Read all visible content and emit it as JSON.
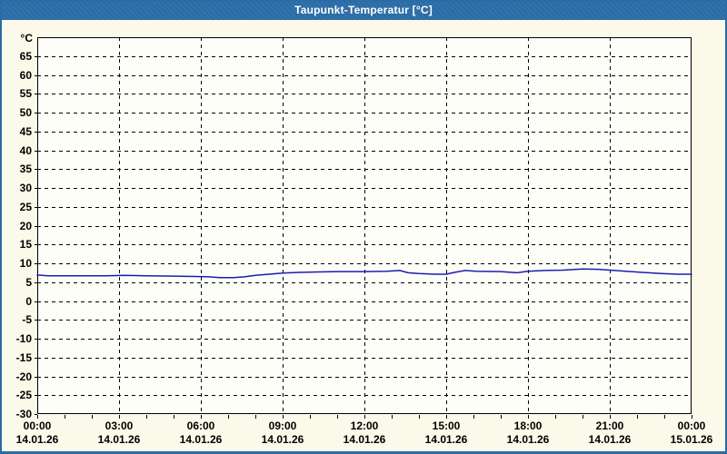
{
  "window": {
    "title": "Taupunkt-Temperatur [°C]"
  },
  "colors": {
    "titlebar": "#2b6ca6",
    "border": "#2b6ca6",
    "window_bg": "#faf9ea",
    "plot_bg": "#fefef9",
    "grid": "#000000",
    "axis": "#000000",
    "label_text": "#000000",
    "title_text": "#ffffff",
    "line": "#1c1cb4"
  },
  "chart_data": {
    "type": "line",
    "title": "Taupunkt-Temperatur [°C]",
    "ylabel": "°C",
    "xlabel": "",
    "ylim": [
      -30,
      70
    ],
    "y_ticks": [
      65,
      60,
      55,
      50,
      45,
      40,
      35,
      30,
      25,
      20,
      15,
      10,
      5,
      0,
      -5,
      -10,
      -15,
      -20,
      -25,
      -30
    ],
    "grid": "dashed",
    "legend": "none",
    "x_axis": {
      "unit": "hours",
      "range_hours": [
        0,
        24
      ],
      "major_step_hours": 3,
      "minor_step_hours": 1,
      "ticks": [
        {
          "hour": 0,
          "time": "00:00",
          "date": "14.01.26"
        },
        {
          "hour": 3,
          "time": "03:00",
          "date": "14.01.26"
        },
        {
          "hour": 6,
          "time": "06:00",
          "date": "14.01.26"
        },
        {
          "hour": 9,
          "time": "09:00",
          "date": "14.01.26"
        },
        {
          "hour": 12,
          "time": "12:00",
          "date": "14.01.26"
        },
        {
          "hour": 15,
          "time": "15:00",
          "date": "14.01.26"
        },
        {
          "hour": 18,
          "time": "18:00",
          "date": "14.01.26"
        },
        {
          "hour": 21,
          "time": "21:00",
          "date": "14.01.26"
        },
        {
          "hour": 24,
          "time": "00:00",
          "date": "15.01.26"
        }
      ]
    },
    "series": [
      {
        "name": "Taupunkt-Temperatur",
        "color": "#1c1cb4",
        "points_hour_degC": [
          [
            0,
            6.9
          ],
          [
            0.4,
            6.7
          ],
          [
            1.5,
            6.7
          ],
          [
            2.5,
            6.7
          ],
          [
            3.2,
            6.8
          ],
          [
            4,
            6.7
          ],
          [
            5,
            6.6
          ],
          [
            5.8,
            6.5
          ],
          [
            6.3,
            6.4
          ],
          [
            6.7,
            6.2
          ],
          [
            7.2,
            6.2
          ],
          [
            7.6,
            6.4
          ],
          [
            8,
            6.8
          ],
          [
            8.5,
            7.1
          ],
          [
            9,
            7.4
          ],
          [
            9.6,
            7.6
          ],
          [
            10.3,
            7.7
          ],
          [
            11,
            7.8
          ],
          [
            12,
            7.8
          ],
          [
            12.8,
            7.9
          ],
          [
            13.3,
            8.1
          ],
          [
            13.6,
            7.5
          ],
          [
            14,
            7.3
          ],
          [
            14.6,
            7.1
          ],
          [
            15,
            7.1
          ],
          [
            15.3,
            7.6
          ],
          [
            15.7,
            8.1
          ],
          [
            16.1,
            7.9
          ],
          [
            17,
            7.8
          ],
          [
            17.6,
            7.5
          ],
          [
            18,
            7.9
          ],
          [
            18.6,
            8.1
          ],
          [
            19.3,
            8.2
          ],
          [
            20,
            8.5
          ],
          [
            20.6,
            8.4
          ],
          [
            21,
            8.2
          ],
          [
            21.6,
            7.9
          ],
          [
            22.2,
            7.6
          ],
          [
            22.9,
            7.3
          ],
          [
            23.5,
            7.1
          ],
          [
            24,
            7.1
          ]
        ]
      }
    ]
  }
}
